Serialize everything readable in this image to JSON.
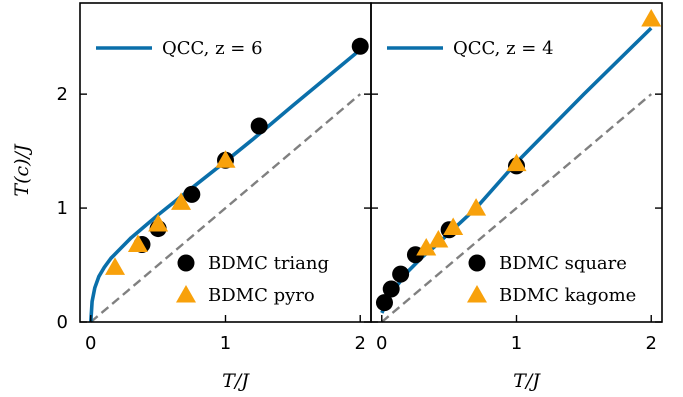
{
  "chart_data": [
    {
      "type": "line+scatter",
      "xlabel": "T/J",
      "ylabel": "T(c)/J",
      "xlim": [
        -0.08,
        2.08
      ],
      "ylim": [
        0,
        2.8
      ],
      "xticks": [
        "0",
        "1",
        "2"
      ],
      "yticks": [
        "0",
        "1",
        "2"
      ],
      "line_series": {
        "name": "QCC, z = 6",
        "color": "#0a6faa",
        "x": [
          0.0,
          0.01,
          0.03,
          0.06,
          0.1,
          0.15,
          0.2,
          0.3,
          0.4,
          0.5,
          0.7,
          1.0,
          1.2,
          1.5,
          2.0
        ],
        "y": [
          0.0,
          0.18,
          0.3,
          0.4,
          0.48,
          0.56,
          0.62,
          0.74,
          0.84,
          0.94,
          1.13,
          1.41,
          1.6,
          1.9,
          2.39
        ]
      },
      "reference_line": {
        "x": [
          0,
          2
        ],
        "y": [
          0,
          2
        ],
        "color": "#808080",
        "dashed": true
      },
      "scatter_series": [
        {
          "name": "BDMC triang",
          "marker": "circle",
          "color": "#000000",
          "x": [
            0.38,
            0.5,
            0.75,
            1.0,
            1.25,
            2.0
          ],
          "y": [
            0.68,
            0.82,
            1.12,
            1.42,
            1.72,
            2.42
          ]
        },
        {
          "name": "BDMC pyro",
          "marker": "triangle",
          "color": "#f8a10b",
          "x": [
            0.18,
            0.35,
            0.5,
            0.67,
            1.0
          ],
          "y": [
            0.48,
            0.68,
            0.86,
            1.05,
            1.42
          ]
        }
      ],
      "legend": [
        {
          "label": "QCC, z = 6",
          "kind": "line",
          "color": "#0a6faa"
        },
        {
          "label": "BDMC triang",
          "kind": "circle",
          "color": "#000000"
        },
        {
          "label": "BDMC pyro",
          "kind": "triangle",
          "color": "#f8a10b"
        }
      ]
    },
    {
      "type": "line+scatter",
      "xlabel": "T/J",
      "ylabel": "",
      "xlim": [
        -0.08,
        2.08
      ],
      "ylim": [
        0,
        2.8
      ],
      "xticks": [
        "0",
        "1",
        "2"
      ],
      "line_series": {
        "name": "QCC, z = 4",
        "color": "#0a6faa",
        "x": [
          0.0,
          0.05,
          0.1,
          0.2,
          0.3,
          0.4,
          0.5,
          0.7,
          1.0,
          1.5,
          2.0
        ],
        "y": [
          0.08,
          0.2,
          0.3,
          0.45,
          0.57,
          0.67,
          0.78,
          1.0,
          1.4,
          2.0,
          2.58
        ]
      },
      "reference_line": {
        "x": [
          0,
          2
        ],
        "y": [
          0,
          2
        ],
        "color": "#808080",
        "dashed": true
      },
      "scatter_series": [
        {
          "name": "BDMC square",
          "marker": "circle",
          "color": "#000000",
          "x": [
            0.02,
            0.07,
            0.14,
            0.25,
            0.5,
            1.0
          ],
          "y": [
            0.17,
            0.29,
            0.42,
            0.59,
            0.81,
            1.37
          ]
        },
        {
          "name": "BDMC kagome",
          "marker": "triangle",
          "color": "#f8a10b",
          "x": [
            0.33,
            0.42,
            0.53,
            0.7,
            1.0,
            2.0
          ],
          "y": [
            0.65,
            0.72,
            0.83,
            1.0,
            1.39,
            2.66
          ]
        }
      ],
      "legend": [
        {
          "label": "QCC, z = 4",
          "kind": "line",
          "color": "#0a6faa"
        },
        {
          "label": "BDMC square",
          "kind": "circle",
          "color": "#000000"
        },
        {
          "label": "BDMC kagome",
          "kind": "triangle",
          "color": "#f8a10b"
        }
      ]
    }
  ]
}
